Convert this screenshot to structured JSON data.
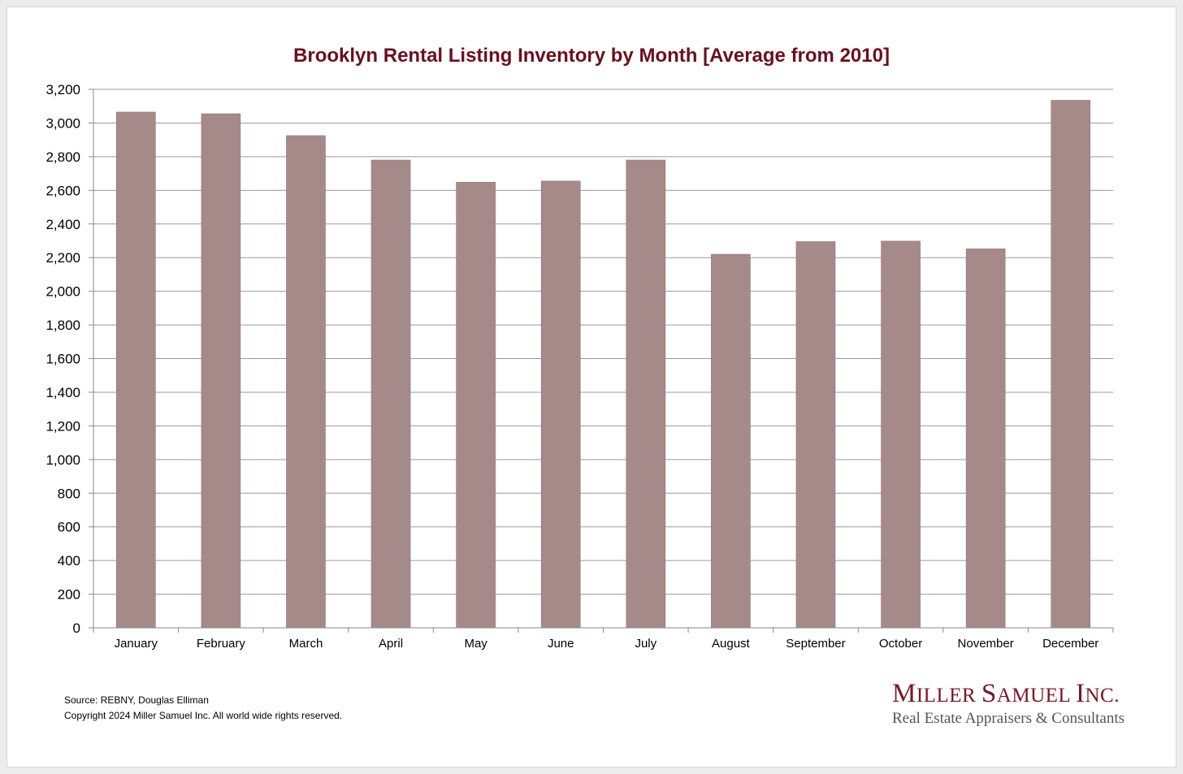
{
  "chart_data": {
    "type": "bar",
    "title": "Brooklyn Rental Listing Inventory by Month [Average from 2010]",
    "categories": [
      "January",
      "February",
      "March",
      "April",
      "May",
      "June",
      "July",
      "August",
      "September",
      "October",
      "November",
      "December"
    ],
    "values": [
      3065,
      3055,
      2925,
      2780,
      2648,
      2655,
      2780,
      2220,
      2295,
      2298,
      2252,
      3135
    ],
    "ylim": [
      0,
      3200
    ],
    "yticks": [
      0,
      200,
      400,
      600,
      800,
      1000,
      1200,
      1400,
      1600,
      1800,
      2000,
      2200,
      2400,
      2600,
      2800,
      3000,
      3200
    ],
    "ytick_labels": [
      "0",
      "200",
      "400",
      "600",
      "800",
      "1,000",
      "1,200",
      "1,400",
      "1,600",
      "1,800",
      "2,000",
      "2,200",
      "2,400",
      "2,600",
      "2,800",
      "3,000",
      "3,200"
    ],
    "grid": true,
    "bar_color": "#a68a89"
  },
  "footer": {
    "source": "Source: REBNY, Douglas Elliman",
    "copyright": "Copyright 2024 Miller Samuel Inc.  All world wide rights reserved."
  },
  "logo": {
    "name_parts": [
      {
        "text": "M",
        "size": "big"
      },
      {
        "text": "ILLER ",
        "size": "small"
      },
      {
        "text": "S",
        "size": "big"
      },
      {
        "text": "AMUEL ",
        "size": "small"
      },
      {
        "text": "I",
        "size": "big"
      },
      {
        "text": "NC.",
        "size": "small"
      }
    ],
    "tagline": "Real Estate Appraisers & Consultants"
  },
  "colors": {
    "title": "#6b0f1e",
    "logo": "#7a1528",
    "gridline": "#9a9a9a"
  }
}
